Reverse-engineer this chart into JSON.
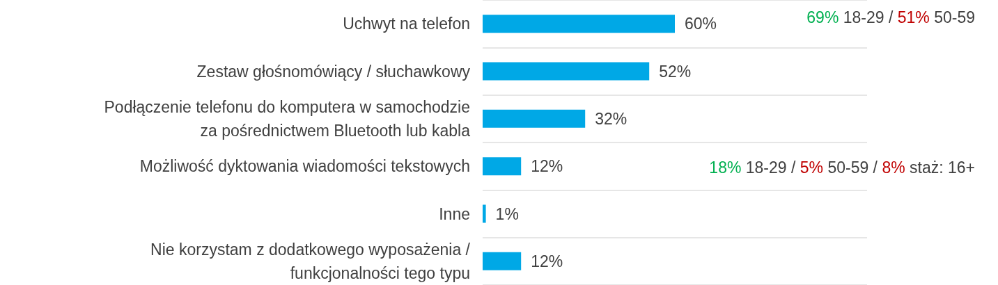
{
  "chart_data": {
    "type": "bar",
    "orientation": "horizontal",
    "categories": [
      "Uchwyt na telefon",
      "Zestaw głośnomówiący / słuchawkowy",
      "Podłączenie telefonu do komputera w samochodzie\nza pośrednictwem Bluetooth lub kabla",
      "Możliwość dyktowania wiadomości tekstowych",
      "Inne",
      "Nie korzystam z dodatkowego wyposażenia /\nfunkcjonalności tego typu"
    ],
    "values": [
      60,
      52,
      32,
      12,
      1,
      12
    ],
    "value_labels": [
      "60%",
      "52%",
      "32%",
      "12%",
      "1%",
      "12%"
    ],
    "color": "#00a8e6",
    "grid": "y",
    "tick_labels": "y",
    "annotations": [
      "69% 18-29 / 51% 50-59",
      "18% 18-29 / 5% 50-59 / 8% staż: 16+"
    ]
  }
}
